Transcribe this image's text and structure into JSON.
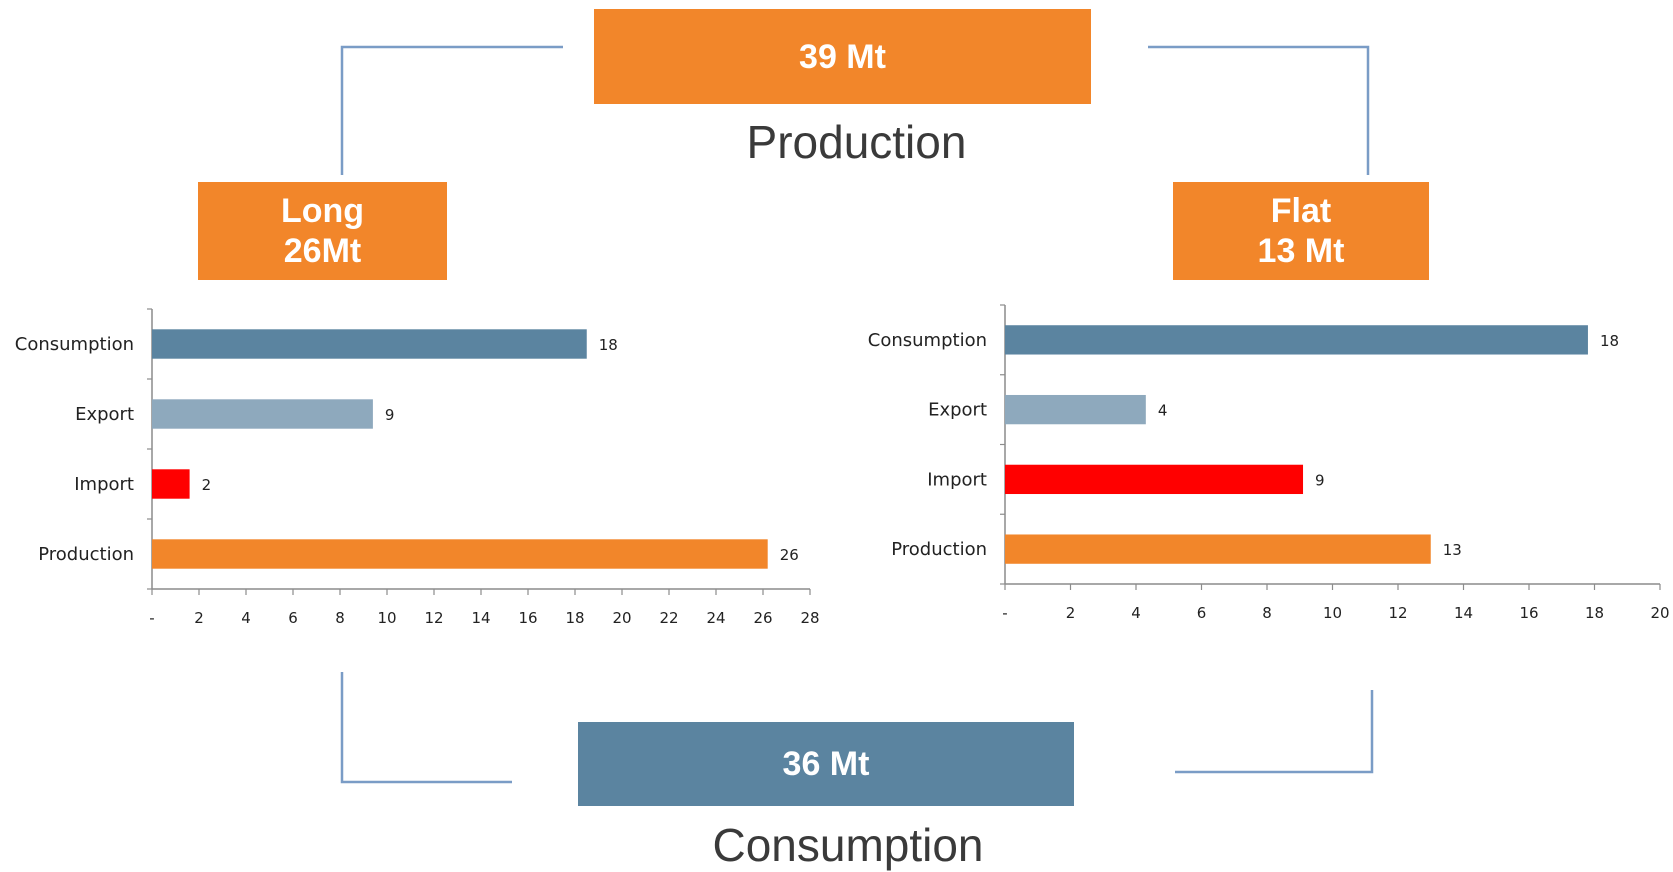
{
  "colors": {
    "orange": "#f2862a",
    "steel": "#5b84a0",
    "light_steel": "#8ea9bd",
    "red": "#ff0000",
    "connector": "#7a9cc6"
  },
  "top_box": {
    "value": "39 Mt",
    "caption": "Production"
  },
  "bottom_box": {
    "value": "36 Mt",
    "caption": "Consumption"
  },
  "long_box": {
    "line1": "Long",
    "line2": "26Mt"
  },
  "flat_box": {
    "line1": "Flat",
    "line2": "13 Mt"
  },
  "chart_data": [
    {
      "type": "bar",
      "orientation": "horizontal",
      "categories": [
        "Consumption",
        "Export",
        "Import",
        "Production"
      ],
      "values": [
        18,
        9,
        2,
        26
      ],
      "bar_lengths": [
        18.5,
        9.4,
        1.6,
        26.2
      ],
      "bar_colors": [
        "#5b84a0",
        "#8ea9bd",
        "#ff0000",
        "#f2862a"
      ],
      "xlim": [
        0,
        28
      ],
      "xticks": [
        "-",
        "2",
        "4",
        "6",
        "8",
        "10",
        "12",
        "14",
        "16",
        "18",
        "20",
        "22",
        "24",
        "26",
        "28"
      ],
      "grid": false
    },
    {
      "type": "bar",
      "orientation": "horizontal",
      "categories": [
        "Consumption",
        "Export",
        "Import",
        "Production"
      ],
      "values": [
        18,
        4,
        9,
        13
      ],
      "bar_lengths": [
        17.8,
        4.3,
        9.1,
        13.0
      ],
      "bar_colors": [
        "#5b84a0",
        "#8ea9bd",
        "#ff0000",
        "#f2862a"
      ],
      "xlim": [
        0,
        20
      ],
      "xticks": [
        "-",
        "2",
        "4",
        "6",
        "8",
        "10",
        "12",
        "14",
        "16",
        "18",
        "20"
      ],
      "grid": false
    }
  ]
}
